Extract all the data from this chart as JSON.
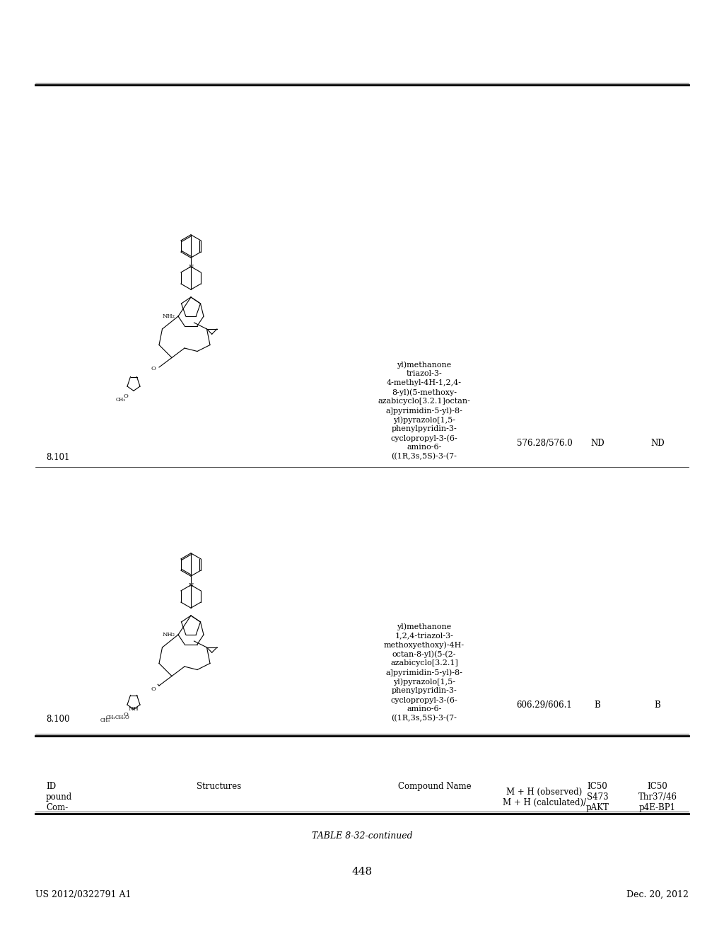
{
  "page_number": "448",
  "patent_number": "US 2012/0322791 A1",
  "patent_date": "Dec. 20, 2012",
  "table_title": "TABLE 8-32-continued",
  "header_col1_line1": "Com-",
  "header_col1_line2": "pound",
  "header_col1_line3": "ID",
  "header_col2": "Structures",
  "header_col3_line1": "M + H (calculated)/",
  "header_col3_line2": "M + H (observed)",
  "header_col4_line1": "pAKT",
  "header_col4_line2": "S473",
  "header_col4_line3": "IC50",
  "header_col5_line1": "p4E-BP1",
  "header_col5_line2": "Thr37/46",
  "header_col5_line3": "IC50",
  "row1_id": "8.100",
  "row1_mh": "606.29/606.1",
  "row1_pakt": "B",
  "row1_p4e": "B",
  "row1_name": "((1R,3s,5S)-3-(7-\namino-6-\ncyclopropyl-3-(6-\nphenylpyridin-3-\nyl)pyrazolo[1,5-\na]pyrimidin-5-yl)-8-\nazabicyclo[3.2.1]\noctan-8-yl)(5-(2-\nmethoxyethoxy)-4H-\n1,2,4-triazol-3-\nyl)methanone",
  "row2_id": "8.101",
  "row2_mh": "576.28/576.0",
  "row2_pakt": "ND",
  "row2_p4e": "ND",
  "row2_name": "((1R,3s,5S)-3-(7-\namino-6-\ncyclopropyl-3-(6-\nphenylpyridin-3-\nyl)pyrazolo[1,5-\na]pyrimidin-5-yl)-8-\nazabicyclo[3.2.1]octan-\n8-yl)(5-methoxy-\n4-methyl-4H-1,2,4-\ntriazol-3-\nyl)methanone",
  "bg_color": "#ffffff",
  "text_color": "#000000",
  "font_size_header": 8.5,
  "font_size_body": 8.5,
  "font_size_title": 9,
  "font_size_patent": 9,
  "font_size_page": 11
}
